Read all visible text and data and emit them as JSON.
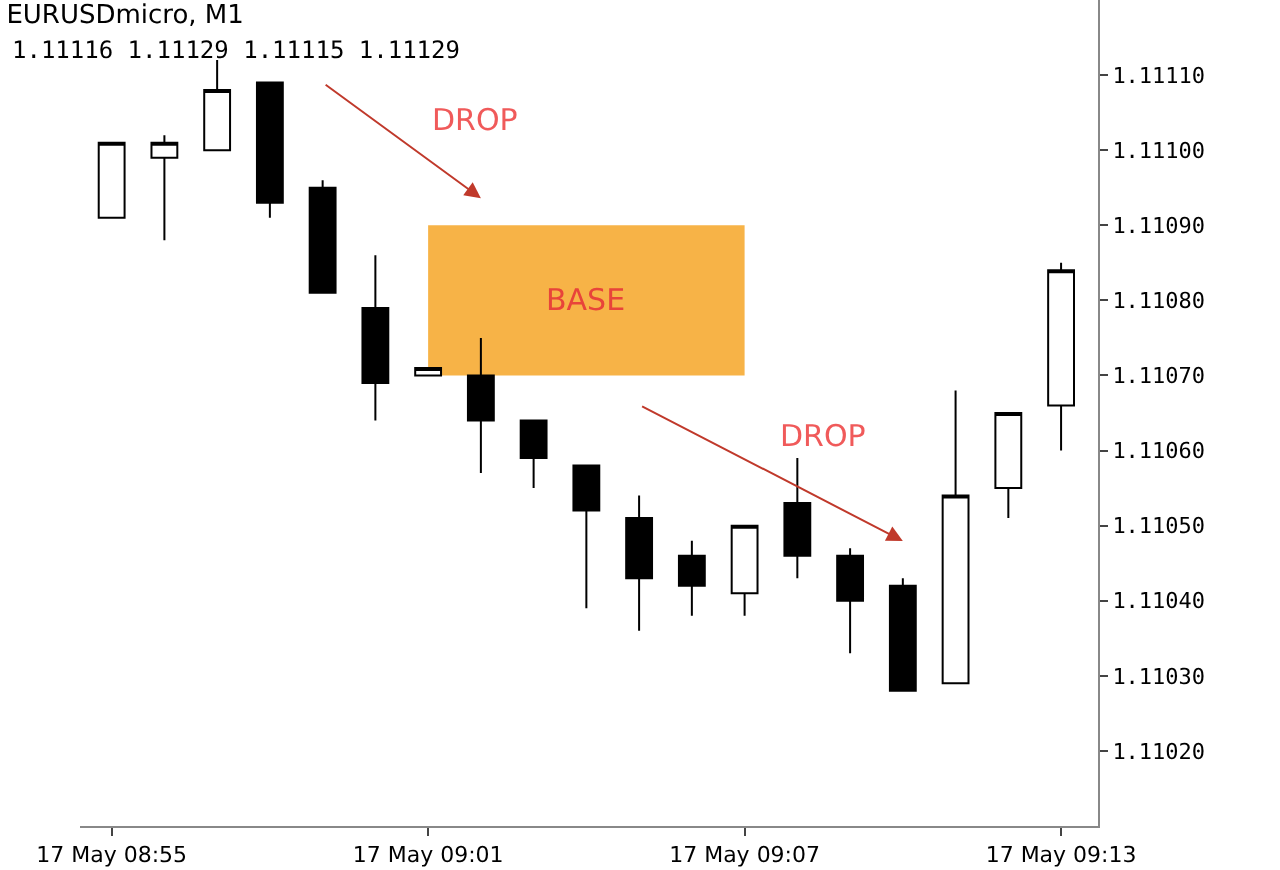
{
  "chart_data": {
    "type": "candlestick",
    "title": "EURUSDmicro, M1",
    "subtitle": "1.11116 1.11129 1.11115 1.11129",
    "categories": [
      "17 May 08:55",
      null,
      null,
      null,
      null,
      null,
      "17 May 09:01",
      null,
      null,
      null,
      null,
      null,
      "17 May 09:07",
      null,
      null,
      null,
      null,
      null,
      "17 May 09:13"
    ],
    "ohlc": [
      [
        1.11091,
        1.11101,
        1.11091,
        1.11101
      ],
      [
        1.11099,
        1.11102,
        1.11088,
        1.11101
      ],
      [
        1.111,
        1.11112,
        1.111,
        1.11108
      ],
      [
        1.11109,
        1.11109,
        1.11091,
        1.11093
      ],
      [
        1.11095,
        1.11096,
        1.11081,
        1.11081
      ],
      [
        1.11079,
        1.11086,
        1.11064,
        1.11069
      ],
      [
        1.1107,
        1.11071,
        1.1107,
        1.11071
      ],
      [
        1.1107,
        1.11075,
        1.11057,
        1.11064
      ],
      [
        1.11064,
        1.11064,
        1.11055,
        1.11059
      ],
      [
        1.11058,
        1.11058,
        1.11039,
        1.11052
      ],
      [
        1.11051,
        1.11054,
        1.11036,
        1.11043
      ],
      [
        1.11046,
        1.11048,
        1.11038,
        1.11042
      ],
      [
        1.11041,
        1.1105,
        1.11038,
        1.1105
      ],
      [
        1.11053,
        1.11059,
        1.11043,
        1.11046
      ],
      [
        1.11046,
        1.11047,
        1.11033,
        1.1104
      ],
      [
        1.11042,
        1.11043,
        1.11028,
        1.11028
      ],
      [
        1.11029,
        1.11068,
        1.11029,
        1.11054
      ],
      [
        1.11055,
        1.11065,
        1.11051,
        1.11065
      ],
      [
        1.11066,
        1.11085,
        1.1106,
        1.11084
      ]
    ],
    "ylim": [
      1.1101,
      1.1112
    ],
    "yticks": [
      {
        "value": 1.1102,
        "label": "1.11020"
      },
      {
        "value": 1.1103,
        "label": "1.11030"
      },
      {
        "value": 1.1104,
        "label": "1.11040"
      },
      {
        "value": 1.1105,
        "label": "1.11050"
      },
      {
        "value": 1.1106,
        "label": "1.11060"
      },
      {
        "value": 1.1107,
        "label": "1.11070"
      },
      {
        "value": 1.1108,
        "label": "1.11080"
      },
      {
        "value": 1.1109,
        "label": "1.11090"
      },
      {
        "value": 1.111,
        "label": "1.11100"
      },
      {
        "value": 1.1111,
        "label": "1.11110"
      }
    ],
    "bands": [
      {
        "axis": "y",
        "from": 1.1107,
        "to": 1.1109,
        "label": "BASE",
        "color": "#f7b347"
      }
    ],
    "annotations": [
      "DROP",
      "DROP"
    ]
  }
}
